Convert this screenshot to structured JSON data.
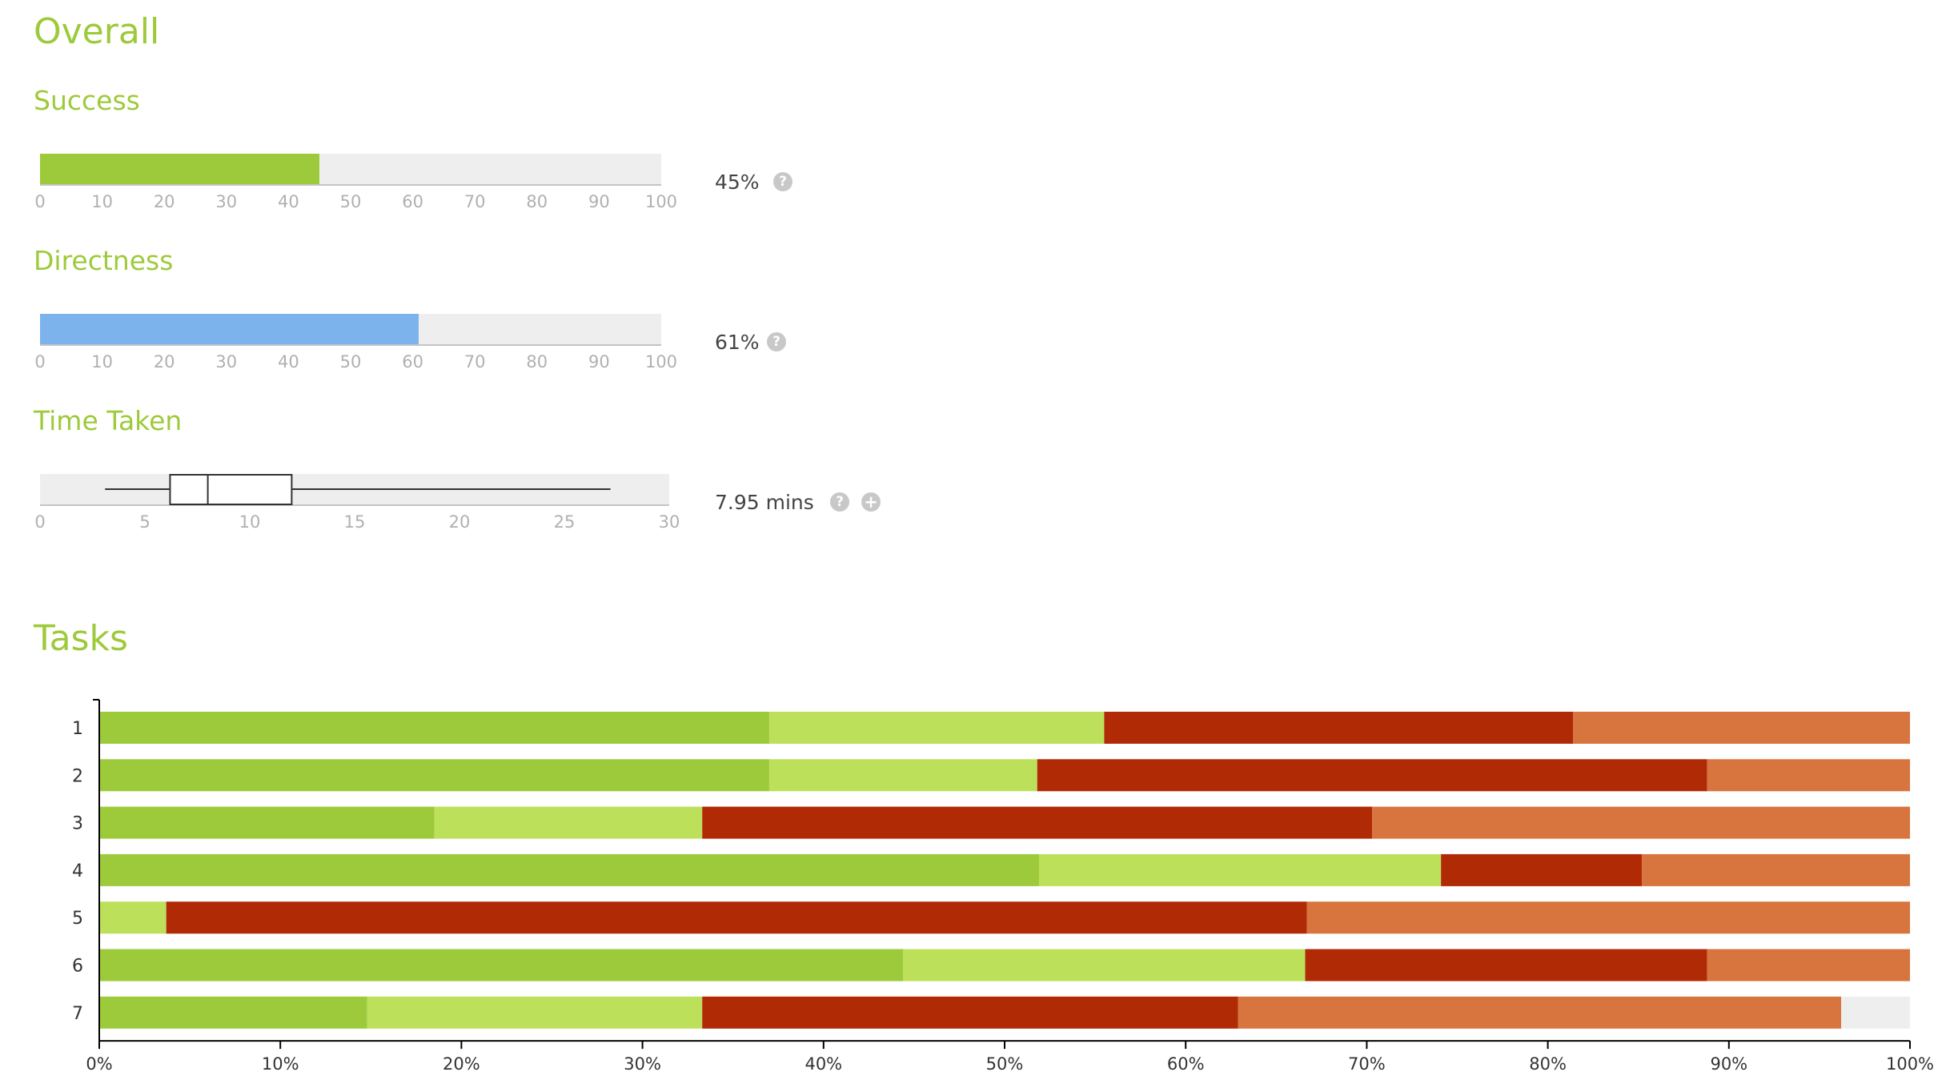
{
  "overall_title": "Overall",
  "tasks_title": "Tasks",
  "success": {
    "label": "Success",
    "value": 45,
    "value_text": "45%",
    "max": 100,
    "ticks": [
      "0",
      "10",
      "20",
      "30",
      "40",
      "50",
      "60",
      "70",
      "80",
      "90",
      "100"
    ],
    "color": "#9dca3a"
  },
  "directness": {
    "label": "Directness",
    "value": 61,
    "value_text": "61%",
    "max": 100,
    "ticks": [
      "0",
      "10",
      "20",
      "30",
      "40",
      "50",
      "60",
      "70",
      "80",
      "90",
      "100"
    ],
    "color": "#7db3ec"
  },
  "time_taken": {
    "label": "Time Taken",
    "value_text": "7.95 mins",
    "max": 30,
    "ticks": [
      "0",
      "5",
      "10",
      "15",
      "20",
      "25",
      "30"
    ],
    "box": {
      "min": 3.1,
      "q1": 6.2,
      "median": 8.0,
      "q3": 12.0,
      "max": 27.2
    }
  },
  "icons": {
    "help": "question-circle-icon",
    "expand": "plus-circle-icon"
  },
  "chart_data": {
    "type": "bar",
    "orientation": "horizontal",
    "stacked": true,
    "categories": [
      "1",
      "2",
      "3",
      "4",
      "5",
      "6",
      "7"
    ],
    "x_ticks": [
      "0%",
      "10%",
      "20%",
      "30%",
      "40%",
      "50%",
      "60%",
      "70%",
      "80%",
      "90%",
      "100%"
    ],
    "xlim": [
      0,
      100
    ],
    "series": [
      {
        "color": "#9dca3a",
        "values": [
          37.0,
          37.0,
          18.5,
          51.9,
          0.0,
          44.4,
          14.8
        ]
      },
      {
        "color": "#bde05b",
        "values": [
          18.5,
          14.8,
          14.8,
          22.2,
          3.7,
          22.2,
          18.5
        ]
      },
      {
        "color": "#b02a06",
        "values": [
          25.9,
          37.0,
          37.0,
          11.1,
          63.0,
          22.2,
          29.6
        ]
      },
      {
        "color": "#d8743d",
        "values": [
          18.6,
          11.2,
          29.7,
          14.8,
          33.3,
          11.2,
          33.3
        ]
      },
      {
        "color": "#eeeeee",
        "values": [
          0.0,
          0.0,
          0.0,
          0.0,
          0.0,
          0.0,
          3.8
        ]
      }
    ]
  }
}
